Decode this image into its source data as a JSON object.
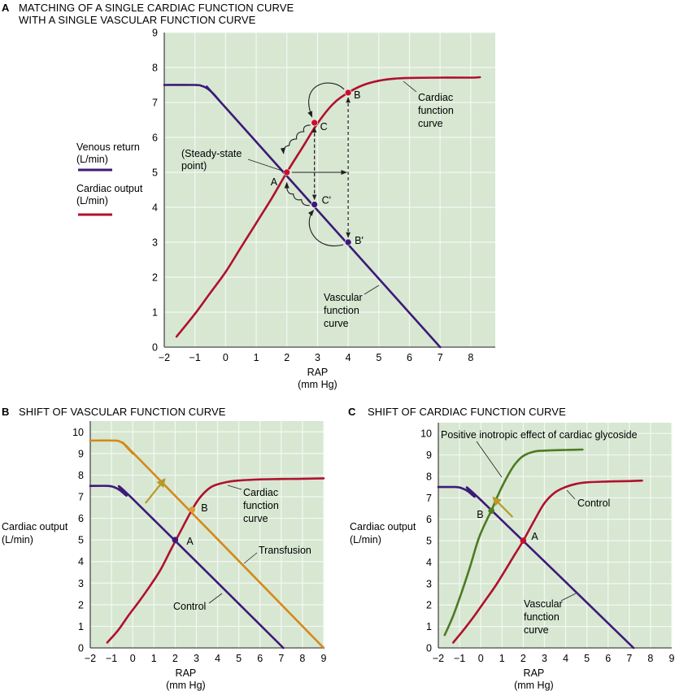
{
  "chart_data": [
    {
      "id": "A",
      "type": "line",
      "panel_label": "A",
      "title": "MATCHING OF A SINGLE CARDIAC FUNCTION CURVE WITH A SINGLE VASCULAR FUNCTION CURVE",
      "title_lines": [
        "MATCHING OF A SINGLE CARDIAC FUNCTION CURVE",
        "WITH A SINGLE VASCULAR FUNCTION CURVE"
      ],
      "xlabel": [
        "RAP",
        "(mm Hg)"
      ],
      "ylabel": "",
      "xlim": [
        -2,
        8.8
      ],
      "ylim": [
        0,
        9
      ],
      "xticks": [
        -2,
        -1,
        0,
        1,
        2,
        3,
        4,
        5,
        6,
        7,
        8
      ],
      "xtick_labels": [
        "−2",
        "−1",
        "0",
        "1",
        "2",
        "3",
        "4",
        "5",
        "6",
        "7",
        "8"
      ],
      "yticks": [
        0,
        1,
        2,
        3,
        4,
        5,
        6,
        7,
        8,
        9
      ],
      "grid": true,
      "legend": {
        "placement": "left",
        "entries": [
          {
            "lines": [
              "Venous return",
              "(L/min)"
            ],
            "color": "#3d1a78"
          },
          {
            "lines": [
              "Cardiac output",
              "(L/min)"
            ],
            "color": "#b0102e"
          }
        ]
      },
      "series": [
        {
          "name": "Vascular function curve",
          "color": "#3d1a78",
          "x": [
            -2,
            -1,
            -0.8,
            -0.6,
            -0.4,
            -0.2,
            0,
            7
          ],
          "y": [
            7.5,
            7.5,
            7.48,
            7.4,
            7.25,
            7.05,
            6.85,
            0
          ]
        },
        {
          "name": "Cardiac function curve",
          "color": "#b0102e",
          "x": [
            -1.6,
            -1,
            -0.5,
            0,
            0.5,
            1,
            1.5,
            2,
            2.5,
            3,
            3.5,
            4,
            4.5,
            5,
            5.5,
            6,
            7,
            8,
            8.3
          ],
          "y": [
            0.3,
            0.95,
            1.55,
            2.15,
            2.85,
            3.55,
            4.25,
            5.0,
            5.7,
            6.4,
            6.95,
            7.28,
            7.5,
            7.62,
            7.68,
            7.7,
            7.71,
            7.71,
            7.72
          ]
        }
      ],
      "points": [
        {
          "label": "A",
          "x": 2,
          "y": 5,
          "color": "#c8102e"
        },
        {
          "label": "C",
          "x": 2.9,
          "y": 6.42,
          "color": "#c8102e"
        },
        {
          "label": "B",
          "x": 4,
          "y": 7.28,
          "color": "#c8102e"
        },
        {
          "label": "C'",
          "x": 2.9,
          "y": 4.08,
          "color": "#3d1a78"
        },
        {
          "label": "B'",
          "x": 4,
          "y": 3.0,
          "color": "#3d1a78"
        }
      ],
      "annotations": [
        {
          "text": [
            "(Steady-state",
            "point)"
          ],
          "target": "A"
        },
        {
          "text": [
            "Cardiac",
            "function",
            "curve"
          ],
          "target": "Cardiac function curve"
        },
        {
          "text": [
            "Vascular",
            "function",
            "curve"
          ],
          "target": "Vascular function curve"
        }
      ]
    },
    {
      "id": "B",
      "type": "line",
      "panel_label": "B",
      "title": "SHIFT OF VASCULAR FUNCTION CURVE",
      "xlabel": [
        "RAP",
        "(mm Hg)"
      ],
      "ylabel": [
        "Cardiac output",
        "(L/min)"
      ],
      "xlim": [
        -2,
        9
      ],
      "ylim": [
        0,
        10.5
      ],
      "xticks": [
        -2,
        -1,
        0,
        1,
        2,
        3,
        4,
        5,
        6,
        7,
        8,
        9
      ],
      "xtick_labels": [
        "−2",
        "−1",
        "0",
        "1",
        "2",
        "3",
        "4",
        "5",
        "6",
        "7",
        "8",
        "9"
      ],
      "yticks": [
        0,
        1,
        2,
        3,
        4,
        5,
        6,
        7,
        8,
        9,
        10
      ],
      "grid": true,
      "series": [
        {
          "name": "Control",
          "color": "#3d1a78",
          "x": [
            -2,
            -1.2,
            -0.9,
            -0.6,
            -0.3,
            0,
            7.1
          ],
          "y": [
            7.5,
            7.5,
            7.45,
            7.3,
            7.05,
            6.9,
            0
          ]
        },
        {
          "name": "Transfusion",
          "color": "#d4891a",
          "x": [
            -2,
            -0.9,
            -0.6,
            -0.3,
            0,
            0.3,
            9
          ],
          "y": [
            9.6,
            9.6,
            9.55,
            9.35,
            9.0,
            8.75,
            0
          ]
        },
        {
          "name": "Cardiac function curve",
          "color": "#b0102e",
          "x": [
            -1.2,
            -0.7,
            -0.2,
            0.3,
            0.8,
            1.3,
            1.8,
            2.2,
            2.8,
            3.2,
            3.7,
            4.3,
            5,
            6,
            7,
            8,
            9
          ],
          "y": [
            0.25,
            0.8,
            1.5,
            2.15,
            2.85,
            3.6,
            4.55,
            5.3,
            6.4,
            7.0,
            7.45,
            7.65,
            7.75,
            7.8,
            7.82,
            7.83,
            7.85
          ]
        }
      ],
      "points": [
        {
          "label": "A",
          "x": 2,
          "y": 5,
          "color": "#3d1a78"
        },
        {
          "label": "B",
          "x": 2.8,
          "y": 6.4,
          "color": "#e09a3a"
        }
      ],
      "arrow": {
        "from": [
          0.6,
          6.7
        ],
        "to": [
          1.5,
          7.8
        ],
        "color": "#b89a2a"
      },
      "annotations": [
        {
          "text": [
            "Cardiac",
            "function",
            "curve"
          ],
          "target": "Cardiac function curve"
        },
        {
          "text": [
            "Transfusion"
          ],
          "target": "Transfusion"
        },
        {
          "text": [
            "Control"
          ],
          "target": "Control"
        }
      ]
    },
    {
      "id": "C",
      "type": "line",
      "panel_label": "C",
      "title": "SHIFT OF CARDIAC FUNCTION CURVE",
      "xlabel": [
        "RAP",
        "(mm Hg)"
      ],
      "ylabel": [
        "Cardiac output",
        "(L/min)"
      ],
      "xlim": [
        -2,
        9
      ],
      "ylim": [
        0,
        10.5
      ],
      "xticks": [
        -2,
        -1,
        0,
        1,
        2,
        3,
        4,
        5,
        6,
        7,
        8,
        9
      ],
      "xtick_labels": [
        "−2",
        "−1",
        "0",
        "1",
        "2",
        "3",
        "4",
        "5",
        "6",
        "7",
        "8",
        "9"
      ],
      "yticks": [
        0,
        1,
        2,
        3,
        4,
        5,
        6,
        7,
        8,
        9,
        10
      ],
      "grid": true,
      "series": [
        {
          "name": "Vascular function curve",
          "color": "#3d1a78",
          "x": [
            -2,
            -1.2,
            -0.9,
            -0.6,
            -0.3,
            0,
            7.2
          ],
          "y": [
            7.5,
            7.5,
            7.45,
            7.3,
            7.05,
            6.9,
            0
          ]
        },
        {
          "name": "Control",
          "color": "#b0102e",
          "x": [
            -1.3,
            -0.8,
            -0.3,
            0.2,
            0.7,
            1.2,
            1.6,
            2.0,
            2.5,
            3.0,
            3.5,
            4,
            4.5,
            5,
            6,
            7,
            7.6
          ],
          "y": [
            0.25,
            0.85,
            1.5,
            2.2,
            2.9,
            3.7,
            4.35,
            5.0,
            5.9,
            6.75,
            7.25,
            7.5,
            7.65,
            7.72,
            7.76,
            7.78,
            7.8
          ]
        },
        {
          "name": "Positive inotropic effect of cardiac glycoside",
          "color": "#4e7a22",
          "x": [
            -1.7,
            -1.3,
            -0.9,
            -0.5,
            -0.1,
            0.3,
            0.5,
            0.8,
            1.2,
            1.6,
            2.0,
            2.5,
            3.0,
            3.5,
            4.0,
            4.8
          ],
          "y": [
            0.6,
            1.5,
            2.6,
            3.8,
            5.1,
            6.0,
            6.4,
            7.1,
            7.9,
            8.55,
            8.95,
            9.15,
            9.2,
            9.22,
            9.23,
            9.25
          ]
        }
      ],
      "points": [
        {
          "label": "A",
          "x": 2,
          "y": 5,
          "color": "#c8102e"
        },
        {
          "label": "B",
          "x": 0.5,
          "y": 6.4,
          "color": "#4e7a22"
        }
      ],
      "arrow": {
        "from": [
          1.5,
          6.1
        ],
        "to": [
          0.6,
          7.0
        ],
        "color": "#b89a2a"
      },
      "annotations": [
        {
          "text": [
            "Positive inotropic effect of cardiac glycoside"
          ],
          "target": "Positive inotropic effect of cardiac glycoside"
        },
        {
          "text": [
            "Control"
          ],
          "target": "Control"
        },
        {
          "text": [
            "Vascular",
            "function",
            "curve"
          ],
          "target": "Vascular function curve"
        }
      ]
    }
  ],
  "colors": {
    "plot_background": "#d7e7d2",
    "grid": "#f4f8f2",
    "axis": "#4a4a4a"
  }
}
